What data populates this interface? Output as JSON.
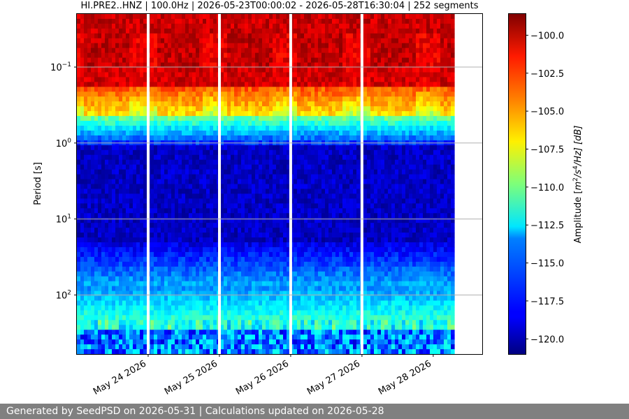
{
  "chart_data": {
    "type": "heatmap",
    "title": "HI.PRE2..HNZ | 100.0Hz | 2026-05-23T00:00:02 - 2026-05-28T16:30:04 | 252 segments",
    "ylabel": "Period [s]",
    "xlabel": "",
    "y_scale": "log",
    "y_inverted": true,
    "ylim": [
      0.02,
      600
    ],
    "y_tick_labels": [
      "10^-1",
      "10^0",
      "10^1",
      "10^2"
    ],
    "y_tick_values": [
      0.1,
      1,
      10,
      100
    ],
    "x_range": [
      "2026-05-23T00:00:02",
      "2026-05-28T16:30:04"
    ],
    "x_tick_labels": [
      "May 24 2026",
      "May 25 2026",
      "May 26 2026",
      "May 27 2026",
      "May 28 2026"
    ],
    "x_tick_dates": [
      "2026-05-24",
      "2026-05-25",
      "2026-05-26",
      "2026-05-27",
      "2026-05-28"
    ],
    "data_gaps": [
      {
        "start": "2026-05-28T07:00",
        "end": "2026-05-28T16:00"
      }
    ],
    "colorbar": {
      "label_prefix": "Amplitude [",
      "label_unit_base": "m",
      "label_exp1": "2",
      "label_mid": "/s",
      "label_exp2": "4",
      "label_tail": "/Hz] [dB]",
      "colormap": "jet",
      "range": [
        -121,
        -98.6
      ],
      "tick_values": [
        -100,
        -102.5,
        -105,
        -107.5,
        -110,
        -112.5,
        -115,
        -117.5,
        -120
      ],
      "tick_labels": [
        "−100.0",
        "−102.5",
        "−105.0",
        "−107.5",
        "−110.0",
        "−112.5",
        "−115.0",
        "−117.5",
        "−120.0"
      ]
    },
    "grid": "horizontal at major y ticks"
  },
  "footer": {
    "text": "Generated by SeedPSD on 2026-05-31 | Calculations updated on 2026-05-28"
  }
}
